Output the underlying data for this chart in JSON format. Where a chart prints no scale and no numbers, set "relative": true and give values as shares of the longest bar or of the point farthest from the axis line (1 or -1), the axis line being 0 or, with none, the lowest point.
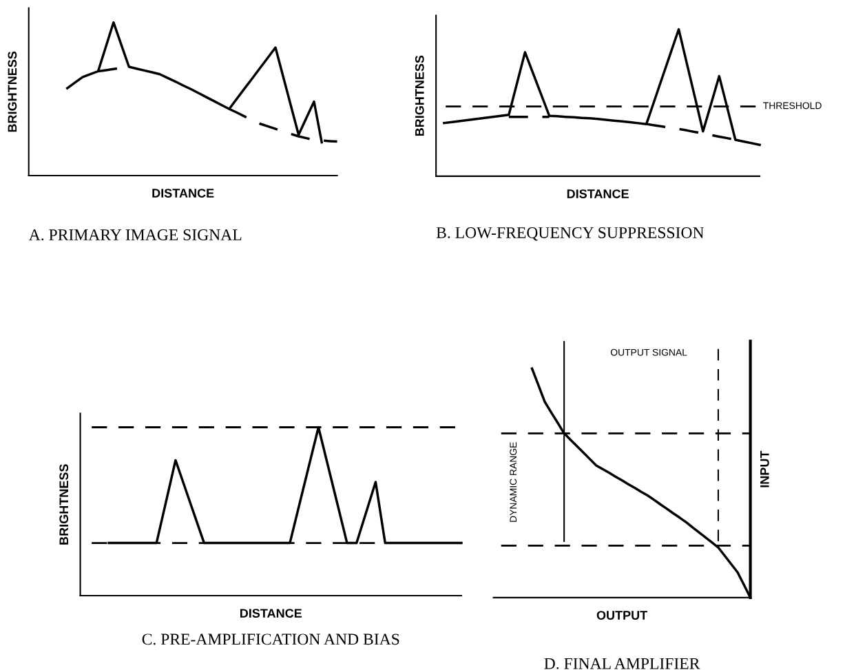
{
  "chart_data": [
    {
      "type": "line",
      "relative": true,
      "title": "A. PRIMARY IMAGE SIGNAL",
      "xlabel": "DISTANCE",
      "ylabel": "BRIGHTNESS",
      "categories": [
        null,
        null,
        null,
        null,
        null,
        null,
        null,
        null,
        null,
        null,
        null,
        null,
        null,
        null,
        null,
        null,
        null,
        null,
        null,
        null,
        null,
        null,
        null,
        null,
        null,
        null,
        null,
        null,
        null,
        null,
        null,
        null,
        null,
        null,
        null,
        null,
        null,
        null,
        null,
        null,
        null
      ],
      "series": [
        {
          "color": "#000000",
          "line_style": "solid",
          "values": [
            null,
            null,
            null,
            null,
            null,
            0.57,
            0.607,
            0.643,
            0.662,
            0.681,
            0.841,
            1.0,
            0.855,
            0.71,
            0.698,
            0.686,
            0.674,
            0.662,
            0.638,
            0.614,
            0.589,
            0.565,
            0.539,
            0.513,
            0.487,
            0.461,
            0.435,
            0.502,
            0.569,
            0.635,
            0.702,
            0.769,
            0.836,
            0.646,
            0.456,
            0.266,
            0.375,
            0.483,
            0.217,
            null,
            null
          ]
        },
        {
          "color": "#000000",
          "line_style": "dashed",
          "values": [
            null,
            null,
            null,
            null,
            null,
            null,
            null,
            null,
            null,
            0.681,
            0.688,
            0.696,
            0.703,
            0.71,
            null,
            null,
            null,
            null,
            null,
            null,
            null,
            null,
            null,
            null,
            null,
            null,
            null,
            null,
            null,
            null,
            null,
            null,
            null,
            null,
            null,
            null,
            null,
            null,
            null,
            null,
            null
          ]
        },
        {
          "color": "#000000",
          "line_style": "dashed",
          "values": [
            null,
            null,
            null,
            null,
            null,
            null,
            null,
            null,
            null,
            null,
            null,
            null,
            null,
            null,
            null,
            null,
            null,
            null,
            null,
            null,
            null,
            null,
            null,
            null,
            null,
            null,
            0.435,
            0.411,
            0.386,
            0.362,
            0.338,
            0.322,
            0.305,
            0.289,
            0.272,
            0.256,
            0.244,
            0.232,
            0.229,
            0.225,
            0.222
          ]
        }
      ]
    },
    {
      "type": "line",
      "relative": true,
      "title": "B. LOW-FREQUENCY SUPPRESSION",
      "xlabel": "DISTANCE",
      "ylabel": "BRIGHTNESS",
      "categories": [
        null,
        null,
        null,
        null,
        null,
        null,
        null,
        null,
        null,
        null,
        null,
        null,
        null,
        null,
        null,
        null,
        null,
        null,
        null,
        null,
        null,
        null,
        null,
        null,
        null,
        null,
        null,
        null,
        null,
        null,
        null,
        null,
        null,
        null,
        null,
        null,
        null,
        null,
        null,
        null,
        null
      ],
      "ref_lines": [
        {
          "axis": "y",
          "value": 0.475,
          "label": "THRESHOLD",
          "color": "#000000",
          "line_style": "dashed"
        }
      ],
      "series": [
        {
          "color": "#000000",
          "line_style": "solid",
          "values": [
            null,
            0.362,
            0.369,
            0.376,
            0.383,
            0.39,
            0.397,
            0.404,
            0.411,
            0.418,
            0.631,
            0.844,
            0.7,
            0.555,
            0.411,
            0.408,
            0.404,
            0.401,
            0.397,
            0.394,
            0.39,
            0.384,
            0.378,
            0.373,
            0.367,
            0.361,
            0.355,
            0.516,
            0.678,
            0.839,
            1.0,
            0.768,
            0.537,
            0.305,
            0.493,
            0.681,
            0.465,
            0.248,
            0.236,
            0.225,
            0.213
          ]
        },
        {
          "color": "#000000",
          "line_style": "dashed",
          "values": [
            null,
            null,
            null,
            null,
            null,
            null,
            null,
            null,
            null,
            0.404,
            0.404,
            0.404,
            0.404,
            0.404,
            0.404,
            null,
            null,
            null,
            null,
            null,
            null,
            null,
            null,
            null,
            null,
            null,
            null,
            null,
            null,
            null,
            null,
            null,
            null,
            null,
            null,
            null,
            null,
            null,
            null,
            null,
            null
          ]
        },
        {
          "color": "#000000",
          "line_style": "dashed",
          "values": [
            null,
            null,
            null,
            null,
            null,
            null,
            null,
            null,
            null,
            null,
            null,
            null,
            null,
            null,
            null,
            null,
            null,
            null,
            null,
            null,
            null,
            null,
            null,
            null,
            null,
            null,
            0.355,
            0.346,
            0.338,
            0.329,
            0.321,
            0.312,
            0.301,
            0.291,
            0.28,
            0.269,
            0.259,
            0.248,
            null,
            null,
            null
          ]
        }
      ]
    },
    {
      "type": "line",
      "relative": true,
      "title": "C. PRE-AMPLIFICATION AND BIAS",
      "xlabel": "DISTANCE",
      "ylabel": "BRIGHTNESS",
      "categories": [
        null,
        null,
        null,
        null,
        null,
        null,
        null,
        null,
        null,
        null,
        null,
        null,
        null,
        null,
        null,
        null,
        null,
        null,
        null,
        null,
        null,
        null,
        null,
        null,
        null,
        null,
        null,
        null,
        null,
        null,
        null,
        null,
        null,
        null,
        null,
        null,
        null,
        null,
        null,
        null,
        null
      ],
      "ref_lines": [
        {
          "axis": "y",
          "value": 1.0,
          "color": "#000000",
          "line_style": "dashed"
        },
        {
          "axis": "y",
          "value": 0.3125,
          "color": "#000000",
          "line_style": "dashed"
        }
      ],
      "series": [
        {
          "color": "#000000",
          "line_style": "solid",
          "values": [
            null,
            null,
            null,
            0.3125,
            0.3125,
            0.3125,
            0.3125,
            0.3125,
            0.3125,
            0.558,
            0.804,
            0.64,
            0.476,
            0.3125,
            0.3125,
            0.3125,
            0.3125,
            0.3125,
            0.3125,
            0.3125,
            0.3125,
            0.3125,
            0.3125,
            0.542,
            0.771,
            1.0,
            0.771,
            0.542,
            0.3125,
            0.3125,
            0.494,
            0.675,
            0.3125,
            0.3125,
            0.3125,
            0.3125,
            0.3125,
            0.3125,
            0.3125,
            0.3125,
            0.3125
          ]
        }
      ]
    },
    {
      "type": "line",
      "relative": true,
      "title": "D. FINAL AMPLIFIER",
      "xlabel": "OUTPUT",
      "ylabel": "INPUT",
      "annotations": [
        "OUTPUT SIGNAL",
        "DYNAMIC RANGE"
      ],
      "categories": [
        null,
        null,
        null,
        null,
        null,
        null,
        null,
        null,
        null,
        null,
        null,
        null,
        null,
        null,
        null,
        null,
        null,
        null,
        null,
        null,
        null,
        null,
        null,
        null,
        null,
        null,
        null,
        null,
        null,
        null,
        null,
        null,
        null,
        null,
        null,
        null,
        null,
        null,
        null,
        null,
        null
      ],
      "ref_lines": [
        {
          "axis": "y",
          "value": 0.717,
          "color": "#000000",
          "line_style": "dashed"
        },
        {
          "axis": "y",
          "value": 0.227,
          "color": "#000000",
          "line_style": "dashed"
        }
      ],
      "series": [
        {
          "color": "#000000",
          "line_style": "solid",
          "values": [
            null,
            null,
            null,
            null,
            null,
            null,
            1.0,
            0.927,
            0.854,
            0.808,
            0.763,
            0.717,
            0.689,
            0.661,
            0.633,
            0.605,
            0.577,
            0.561,
            0.545,
            0.528,
            0.512,
            0.495,
            0.479,
            0.462,
            0.446,
            0.427,
            0.407,
            0.388,
            0.368,
            0.349,
            0.329,
            0.307,
            0.285,
            0.263,
            0.241,
            0.219,
            0.183,
            0.147,
            0.111,
            0.056,
            0.0
          ]
        }
      ]
    }
  ]
}
